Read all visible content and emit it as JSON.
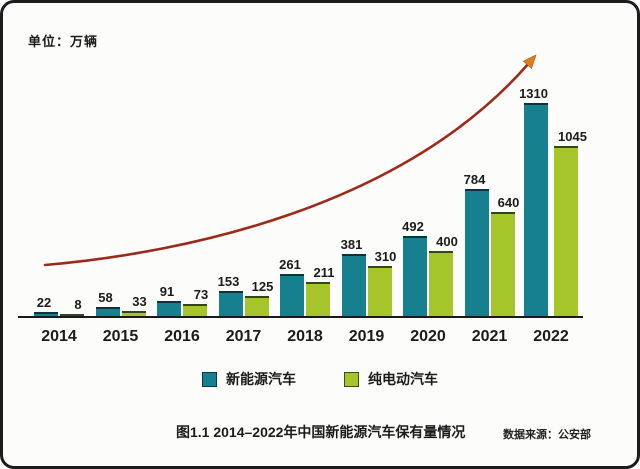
{
  "unit_label": "单位：万辆",
  "chart_data": {
    "type": "bar",
    "title": "图1.1 2014–2022年中国新能源汽车保有量情况",
    "unit": "万辆",
    "categories": [
      "2014",
      "2015",
      "2016",
      "2017",
      "2018",
      "2019",
      "2020",
      "2021",
      "2022"
    ],
    "series": [
      {
        "name": "新能源汽车",
        "color": "#17808F",
        "values": [
          22,
          58,
          91,
          153,
          261,
          381,
          492,
          784,
          1310
        ]
      },
      {
        "name": "纯电动汽车",
        "color": "#A5C52A",
        "values": [
          8,
          33,
          73,
          125,
          211,
          310,
          400,
          640,
          1045
        ]
      }
    ],
    "ylim": [
      0,
      1350
    ],
    "grid": false,
    "legend_position": "bottom",
    "annotations": [
      "exponential growth trend arrow, dark red line with orange arrowhead, rising left to top-right"
    ]
  },
  "caption": {
    "title": "图1.1 2014–2022年中国新能源汽车保有量情况",
    "source": "数据来源：公安部"
  },
  "colors": {
    "series_nev": "#17808F",
    "series_bev": "#A5C52A",
    "arrow_line": "#9C2A18",
    "arrow_head": "#E07D1E",
    "axis": "#1A1A1A"
  }
}
